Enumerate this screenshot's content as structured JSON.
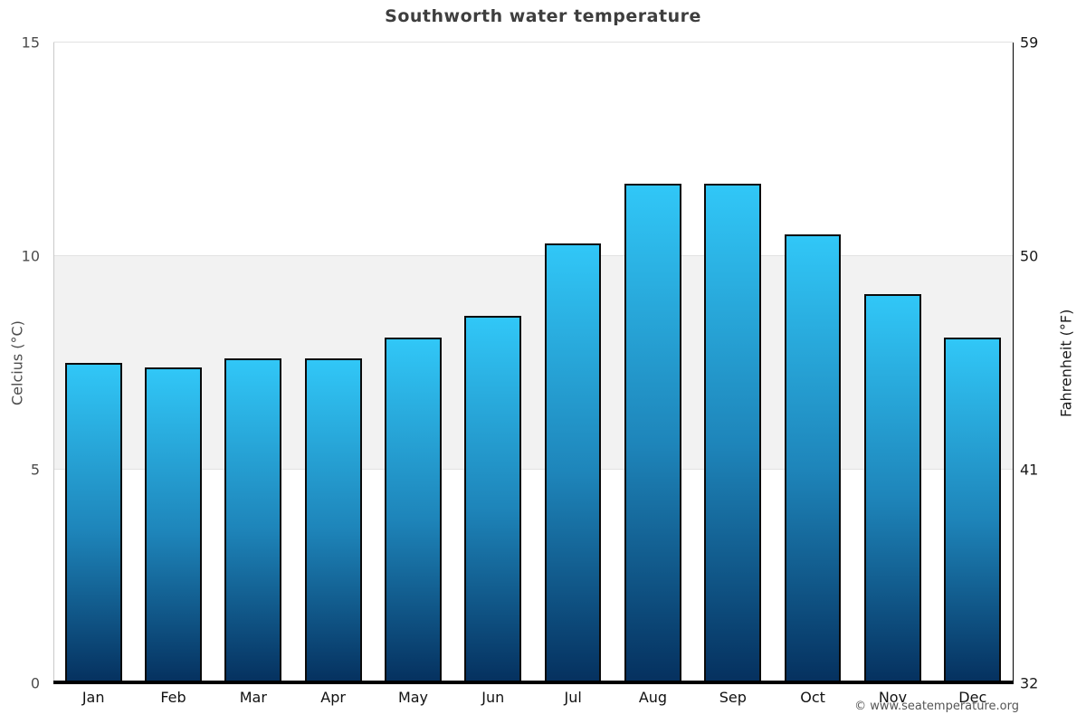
{
  "title": "Southworth water temperature",
  "watermark": "© www.seatemperature.org",
  "axes": {
    "left": {
      "title": "Celcius (°C)",
      "ticks": [
        15,
        10,
        5,
        0
      ]
    },
    "right": {
      "title": "Fahrenheit (°F)",
      "ticks": [
        59,
        50,
        41,
        32
      ]
    }
  },
  "chart_data": {
    "type": "bar",
    "title": "Southworth water temperature",
    "categories": [
      "Jan",
      "Feb",
      "Mar",
      "Apr",
      "May",
      "Jun",
      "Jul",
      "Aug",
      "Sep",
      "Oct",
      "Nov",
      "Dec"
    ],
    "values": [
      7.5,
      7.4,
      7.6,
      7.6,
      8.1,
      8.6,
      10.3,
      11.7,
      11.7,
      10.5,
      9.1,
      8.1
    ],
    "unit": "°C",
    "ylabel_left": "Celcius (°C)",
    "ylabel_right": "Fahrenheit (°F)",
    "ylim": [
      0,
      15
    ],
    "right_axis_ticks_f": [
      59,
      50,
      41,
      32
    ],
    "shaded_band_c": [
      5,
      10
    ],
    "grid": true,
    "legend": false
  },
  "colors": {
    "bar_top": "#31c7f7",
    "bar_mid": "#1e85ba",
    "bar_bottom": "#05305e",
    "bar_border": "#0b0b0b",
    "band": "#f2f2f2",
    "gridline": "#e2e2e2",
    "axis_left_line": "#c9c9c9",
    "axis_right_line": "#000000",
    "baseline": "#000000",
    "title_text": "#3e3e3e",
    "tick_left": "#4d4d4d",
    "tick_right": "#1a1a1a",
    "month_label": "#111111",
    "watermark": "#555555"
  }
}
